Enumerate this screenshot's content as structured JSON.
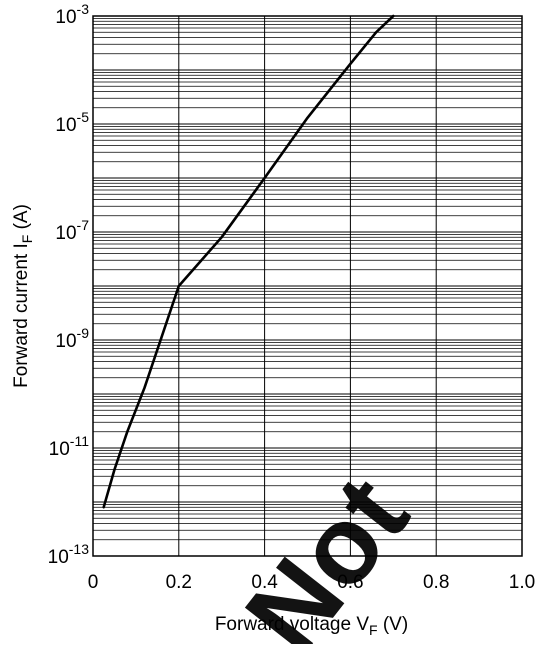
{
  "chart_data": {
    "type": "line",
    "title": "",
    "xlabel": "Forward voltage  V",
    "xlabel_sub": "F",
    "xlabel_unit": "(V)",
    "ylabel": "Forward current  I",
    "ylabel_sub": "F",
    "ylabel_unit": "(A)",
    "xlim": [
      0,
      1.0
    ],
    "ylim_exponent": [
      -13,
      -3
    ],
    "yscale": "log",
    "grid": true,
    "x_ticks": [
      "0",
      "0.2",
      "0.4",
      "0.6",
      "0.8",
      "1.0"
    ],
    "y_ticks": [
      {
        "base": "10",
        "exp": "-13"
      },
      {
        "base": "10",
        "exp": "-11"
      },
      {
        "base": "10",
        "exp": "-9"
      },
      {
        "base": "10",
        "exp": "-7"
      },
      {
        "base": "10",
        "exp": "-5"
      },
      {
        "base": "10",
        "exp": "-3"
      }
    ],
    "series": [
      {
        "color": "#000000",
        "x": [
          0.025,
          0.05,
          0.08,
          0.12,
          0.2,
          0.3,
          0.4,
          0.5,
          0.6,
          0.66,
          0.7
        ],
        "y": [
          8e-13,
          4e-12,
          2e-11,
          1.3e-10,
          1e-08,
          8e-08,
          1e-06,
          1.3e-05,
          0.00013,
          0.0005,
          0.001
        ]
      }
    ]
  },
  "watermark": {
    "text": "Not",
    "color": "#ff0000"
  }
}
